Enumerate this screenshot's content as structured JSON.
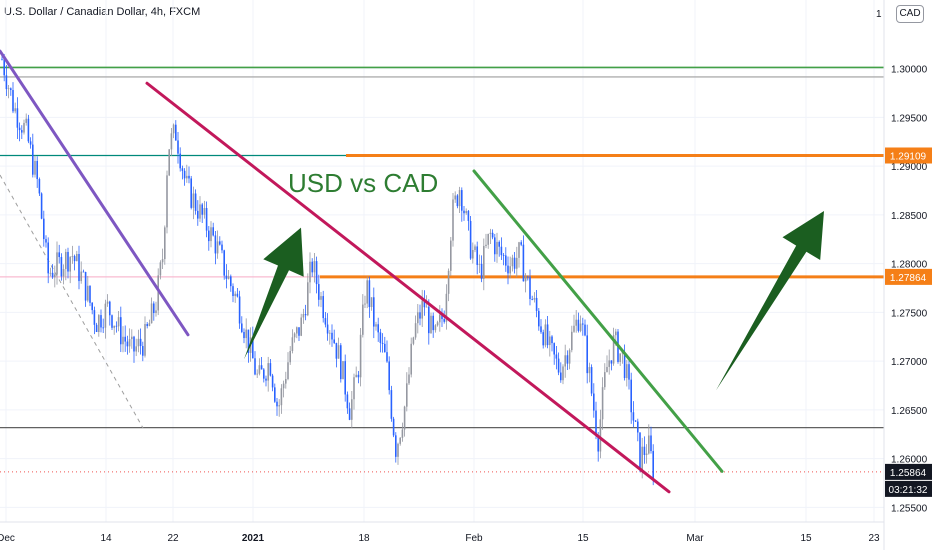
{
  "header": {
    "title": "U.S. Dollar / Canadian Dollar, 4h, FXCM",
    "currency_badge": "CAD",
    "currency_badge_prefix": "1"
  },
  "chart_data": {
    "type": "candlestick",
    "annotation_text": "USD vs CAD",
    "y_axis": {
      "min": 1.2535,
      "max": 1.3055,
      "ticks": [
        {
          "value": 1.3,
          "label": "1.30000"
        },
        {
          "value": 1.295,
          "label": "1.29500"
        },
        {
          "value": 1.29,
          "label": "1.29000"
        },
        {
          "value": 1.285,
          "label": "1.28500"
        },
        {
          "value": 1.28,
          "label": "1.28000"
        },
        {
          "value": 1.275,
          "label": "1.27500"
        },
        {
          "value": 1.27,
          "label": "1.27000"
        },
        {
          "value": 1.265,
          "label": "1.26500"
        },
        {
          "value": 1.26,
          "label": "1.26000"
        },
        {
          "value": 1.255,
          "label": "1.25500"
        }
      ]
    },
    "x_axis": {
      "ticks": [
        {
          "label": "Dec",
          "bold": false
        },
        {
          "label": "14",
          "bold": false
        },
        {
          "label": "22",
          "bold": false
        },
        {
          "label": "2021",
          "bold": true
        },
        {
          "label": "18",
          "bold": false
        },
        {
          "label": "Feb",
          "bold": false
        },
        {
          "label": "15",
          "bold": false
        },
        {
          "label": "Mar",
          "bold": false
        },
        {
          "label": "15",
          "bold": false
        },
        {
          "label": "23",
          "bold": false
        }
      ]
    },
    "price_labels": [
      {
        "value": 1.29109,
        "label": "1.29109",
        "color": "#f57f17"
      },
      {
        "value": 1.27864,
        "label": "1.27864",
        "color": "#f57f17"
      },
      {
        "value": 1.25864,
        "label": "1.25864",
        "color": "#131722"
      }
    ],
    "countdown": "03:21:32",
    "horizontal_levels": [
      {
        "value": 1.30012,
        "color": "#43a047",
        "kind": "full"
      },
      {
        "value": 1.29915,
        "color": "#9e9e9e",
        "kind": "full"
      },
      {
        "value": 1.29109,
        "color": "#00897b",
        "kind": "left"
      },
      {
        "value": 1.29109,
        "color": "#f57f17",
        "kind": "right"
      },
      {
        "value": 1.27864,
        "color": "#f8bbd0",
        "kind": "left"
      },
      {
        "value": 1.27864,
        "color": "#f57f17",
        "kind": "right"
      },
      {
        "value": 1.26318,
        "color": "#616161",
        "kind": "full"
      }
    ],
    "trend_lines": [
      {
        "color": "#7e57c2",
        "p1": [
          0,
          1.3018
        ],
        "p2": [
          188,
          1.2727
        ]
      },
      {
        "color": "#c2185b",
        "p1": [
          147,
          1.2985
        ],
        "p2": [
          669,
          1.2566
        ]
      },
      {
        "color": "#43a047",
        "p1": [
          474,
          1.2895
        ],
        "p2": [
          722,
          1.2587
        ]
      }
    ],
    "arrows": [
      {
        "color": "#1b5e20",
        "tail": [
          244,
          1.2702
        ],
        "head": [
          301,
          1.2837
        ]
      },
      {
        "color": "#1b5e20",
        "tail": [
          716,
          1.267
        ],
        "head": [
          824,
          1.2854
        ]
      }
    ],
    "price_path": [
      [
        2,
        1.301
      ],
      [
        14,
        1.296
      ],
      [
        26,
        1.2935
      ],
      [
        38,
        1.288
      ],
      [
        48,
        1.279
      ],
      [
        60,
        1.28
      ],
      [
        72,
        1.281
      ],
      [
        84,
        1.278
      ],
      [
        96,
        1.274
      ],
      [
        108,
        1.2755
      ],
      [
        120,
        1.273
      ],
      [
        132,
        1.271
      ],
      [
        144,
        1.272
      ],
      [
        156,
        1.276
      ],
      [
        163,
        1.281
      ],
      [
        168,
        1.292
      ],
      [
        176,
        1.2935
      ],
      [
        186,
        1.288
      ],
      [
        196,
        1.286
      ],
      [
        206,
        1.284
      ],
      [
        216,
        1.282
      ],
      [
        226,
        1.279
      ],
      [
        238,
        1.276
      ],
      [
        248,
        1.272
      ],
      [
        258,
        1.268
      ],
      [
        270,
        1.27
      ],
      [
        278,
        1.265
      ],
      [
        290,
        1.271
      ],
      [
        302,
        1.274
      ],
      [
        312,
        1.28
      ],
      [
        322,
        1.276
      ],
      [
        332,
        1.273
      ],
      [
        340,
        1.27
      ],
      [
        350,
        1.265
      ],
      [
        358,
        1.269
      ],
      [
        366,
        1.278
      ],
      [
        376,
        1.273
      ],
      [
        386,
        1.27
      ],
      [
        396,
        1.261
      ],
      [
        406,
        1.266
      ],
      [
        414,
        1.273
      ],
      [
        424,
        1.276
      ],
      [
        434,
        1.272
      ],
      [
        444,
        1.275
      ],
      [
        452,
        1.285
      ],
      [
        460,
        1.288
      ],
      [
        470,
        1.282
      ],
      [
        480,
        1.279
      ],
      [
        490,
        1.283
      ],
      [
        500,
        1.281
      ],
      [
        510,
        1.28
      ],
      [
        520,
        1.281
      ],
      [
        530,
        1.277
      ],
      [
        540,
        1.274
      ],
      [
        550,
        1.271
      ],
      [
        560,
        1.269
      ],
      [
        570,
        1.272
      ],
      [
        580,
        1.275
      ],
      [
        590,
        1.268
      ],
      [
        598,
        1.262
      ],
      [
        606,
        1.269
      ],
      [
        614,
        1.272
      ],
      [
        624,
        1.27
      ],
      [
        632,
        1.265
      ],
      [
        640,
        1.26
      ],
      [
        648,
        1.2615
      ],
      [
        654,
        1.2586
      ]
    ]
  }
}
